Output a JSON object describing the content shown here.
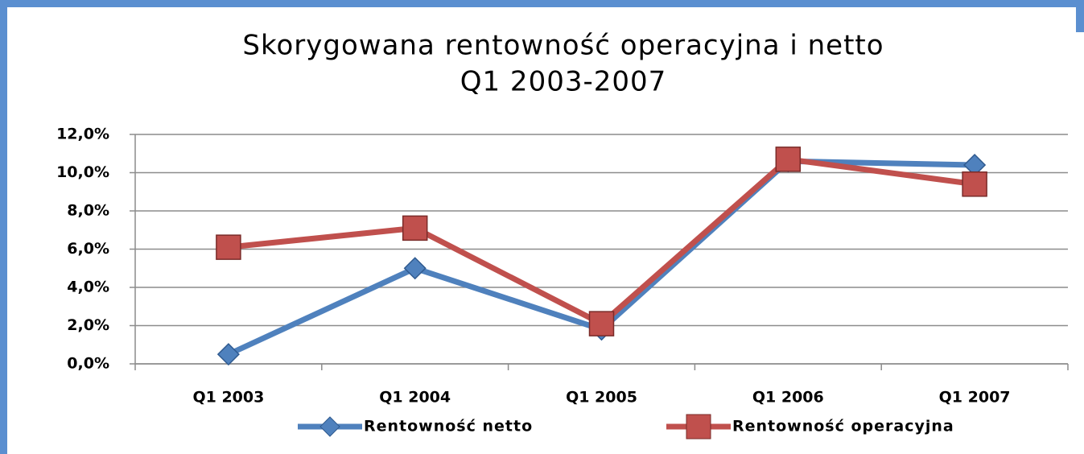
{
  "chart_data": {
    "type": "line",
    "title": "Skorygowana rentowność operacyjna i netto",
    "subtitle": "Q1 2003-2007",
    "categories": [
      "Q1 2003",
      "Q1 2004",
      "Q1 2005",
      "Q1 2006",
      "Q1 2007"
    ],
    "series": [
      {
        "name": "Rentowność netto",
        "color": "#4f81bd",
        "marker": "diamond",
        "values": [
          0.5,
          5.0,
          1.8,
          10.6,
          10.4
        ]
      },
      {
        "name": "Rentowność operacyjna",
        "color": "#c0504d",
        "marker": "square",
        "values": [
          6.1,
          7.1,
          2.1,
          10.7,
          9.4
        ]
      }
    ],
    "ylim": [
      0,
      12
    ],
    "yticks": [
      {
        "value": 0,
        "label": "0,0%"
      },
      {
        "value": 2,
        "label": "2,0%"
      },
      {
        "value": 4,
        "label": "4,0%"
      },
      {
        "value": 6,
        "label": "6,0%"
      },
      {
        "value": 8,
        "label": "8,0%"
      },
      {
        "value": 10,
        "label": "10,0%"
      },
      {
        "value": 12,
        "label": "12,0%"
      }
    ],
    "grid": true,
    "legend": "bottom"
  }
}
